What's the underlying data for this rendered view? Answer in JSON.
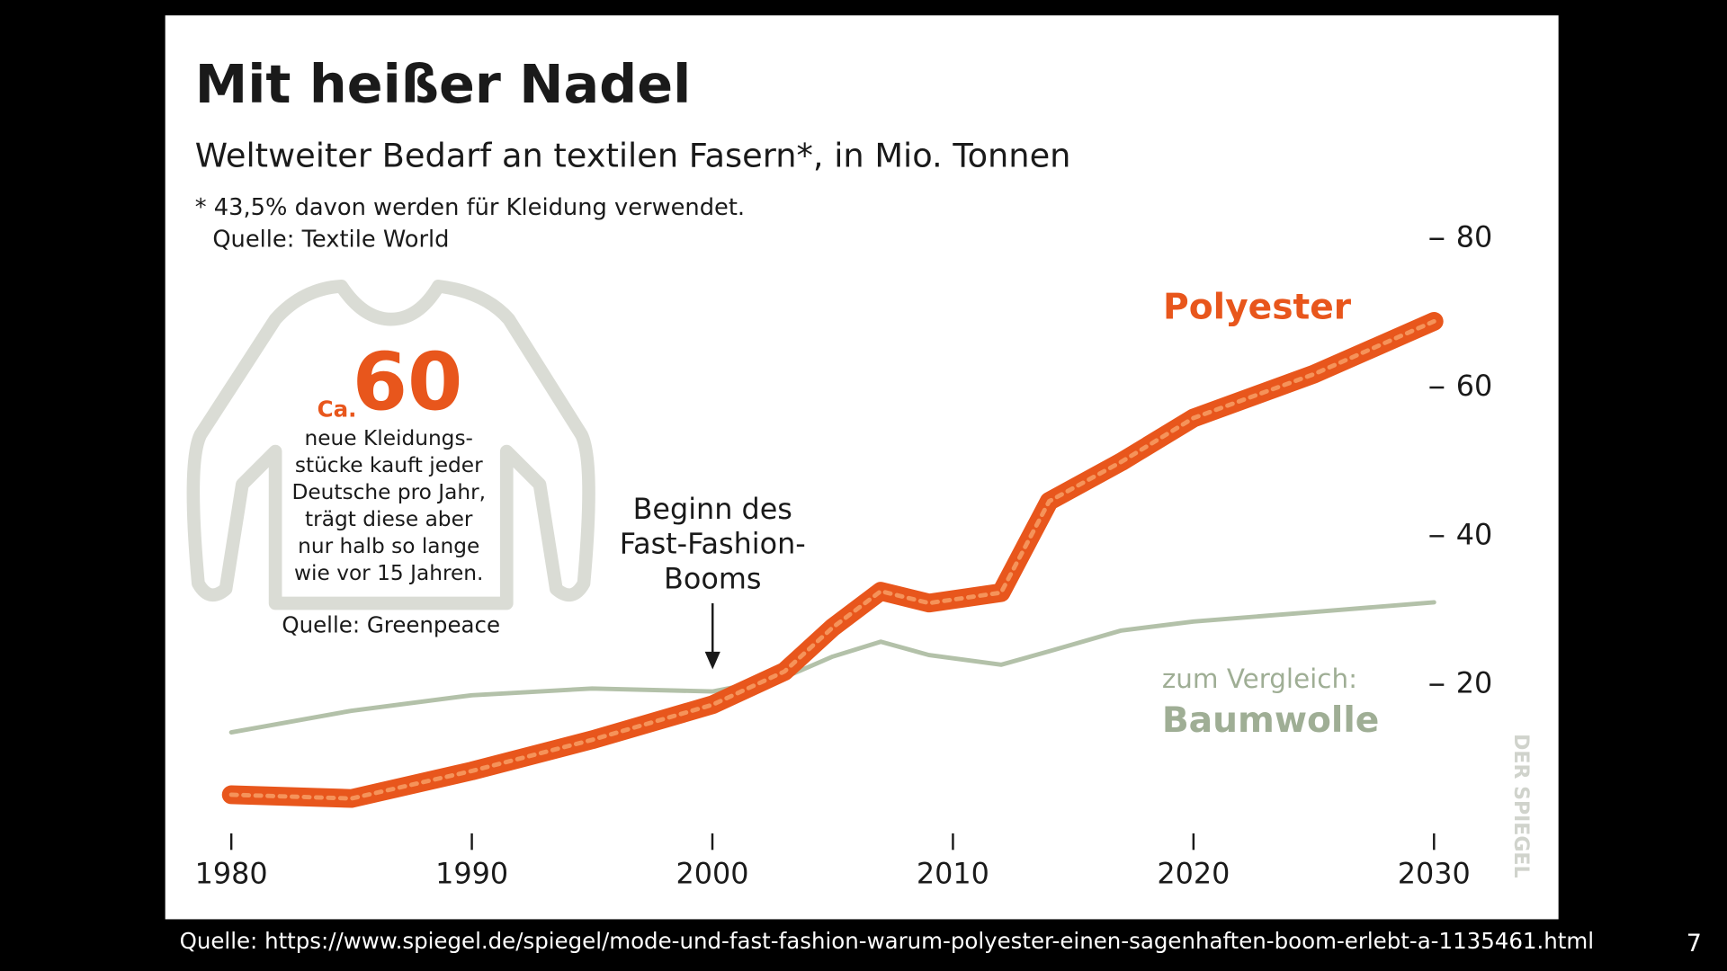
{
  "chart_data": {
    "type": "line",
    "title": "Mit heißer Nadel",
    "subtitle": "Weltweiter Bedarf an textilen Fasern*, in Mio. Tonnen",
    "footnote": "* 43,5% davon werden für Kleidung verwendet.",
    "source": "Quelle: Textile World",
    "annotation": [
      "Beginn des",
      "Fast-Fashion-",
      "Booms"
    ],
    "comparison_label": "zum Vergleich:",
    "x": [
      1980,
      1985,
      1990,
      1995,
      2000,
      2003,
      2005,
      2007,
      2009,
      2012,
      2014,
      2017,
      2020,
      2025,
      2030
    ],
    "series": [
      {
        "name": "Polyester",
        "color": "#e8561c",
        "values": [
          5.2,
          4.7,
          8.4,
          12.6,
          17.3,
          21.8,
          27.7,
          32.6,
          31,
          32.4,
          44.7,
          50,
          55.9,
          61.8,
          68.9
        ]
      },
      {
        "name": "Baumwolle",
        "color": "#b3c1a9",
        "values": [
          13.6,
          16.5,
          18.6,
          19.5,
          19.1,
          21,
          23.8,
          25.8,
          24,
          22.7,
          24.5,
          27.3,
          28.5,
          29.8,
          31.1
        ]
      }
    ],
    "xlim": [
      1980,
      2030
    ],
    "xticks": [
      1980,
      1990,
      2000,
      2010,
      2020,
      2030
    ],
    "ylim": [
      0,
      80
    ],
    "yticks": [
      20,
      40,
      60,
      80
    ],
    "inset": {
      "prefix": "Ca.",
      "number": 60,
      "text": [
        "neue Kleidungs-",
        "stücke kauft jeder",
        "Deutsche pro Jahr,",
        "trägt diese aber",
        "nur halb so lange",
        "wie vor 15 Jahren."
      ],
      "source": "Quelle: Greenpeace"
    },
    "publisher": "DER SPIEGEL"
  },
  "slide": {
    "source": "Quelle: https://www.spiegel.de/spiegel/mode-und-fast-fashion-warum-polyester-einen-sagenhaften-boom-erlebt-a-1135461.html",
    "page_number": 7
  }
}
